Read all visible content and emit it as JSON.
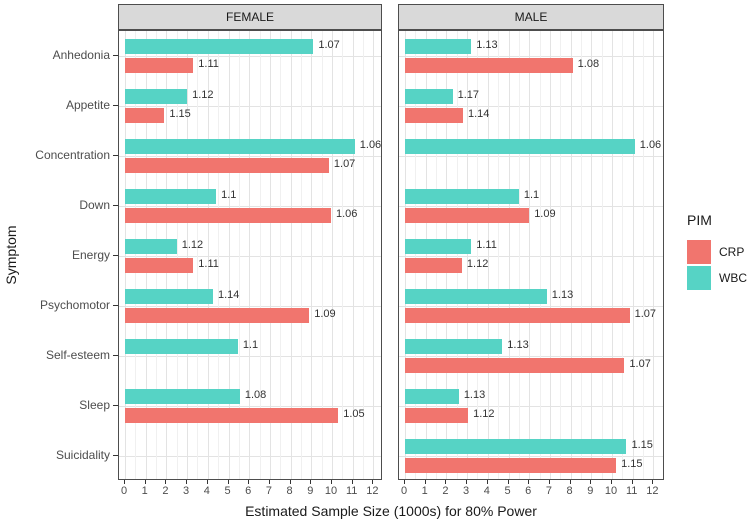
{
  "chart_data": {
    "type": "bar",
    "orientation": "horizontal",
    "xlabel": "Estimated Sample Size (1000s) for 80% Power",
    "ylabel": "Symptom",
    "xlim": [
      0,
      12
    ],
    "xticks": [
      0,
      1,
      2,
      3,
      4,
      5,
      6,
      7,
      8,
      9,
      10,
      11,
      12
    ],
    "grid": true,
    "categories": [
      "Anhedonia",
      "Appetite",
      "Concentration",
      "Down",
      "Energy",
      "Psychomotor",
      "Self-esteem",
      "Sleep",
      "Suicidality"
    ],
    "legend": {
      "title": "PIM",
      "position": "right",
      "entries": [
        {
          "name": "CRP",
          "color": "#f1756e"
        },
        {
          "name": "WBC",
          "color": "#56d3c5"
        }
      ]
    },
    "facets": [
      {
        "label": "FEMALE",
        "series": [
          {
            "name": "WBC",
            "values": [
              9.1,
              3.0,
              11.1,
              4.4,
              2.5,
              4.25,
              5.45,
              5.55,
              null
            ],
            "labels": [
              "1.07",
              "1.12",
              "1.06",
              "1.1",
              "1.12",
              "1.14",
              "1.1",
              "1.08",
              null
            ]
          },
          {
            "name": "CRP",
            "values": [
              3.3,
              1.9,
              9.85,
              9.95,
              3.3,
              8.9,
              null,
              10.3,
              null
            ],
            "labels": [
              "1.11",
              "1.15",
              "1.07",
              "1.06",
              "1.11",
              "1.09",
              null,
              "1.05",
              null
            ]
          }
        ]
      },
      {
        "label": "MALE",
        "series": [
          {
            "name": "WBC",
            "values": [
              3.2,
              2.3,
              11.1,
              5.5,
              3.2,
              6.85,
              4.7,
              2.6,
              10.7
            ],
            "labels": [
              "1.13",
              "1.17",
              "1.06",
              "1.1",
              "1.11",
              "1.13",
              "1.13",
              "1.13",
              "1.15"
            ]
          },
          {
            "name": "CRP",
            "values": [
              8.1,
              2.8,
              null,
              6.0,
              2.75,
              10.85,
              10.6,
              3.05,
              10.2
            ],
            "labels": [
              "1.08",
              "1.14",
              null,
              "1.09",
              "1.12",
              "1.07",
              "1.07",
              "1.12",
              "1.15"
            ]
          }
        ]
      }
    ]
  }
}
